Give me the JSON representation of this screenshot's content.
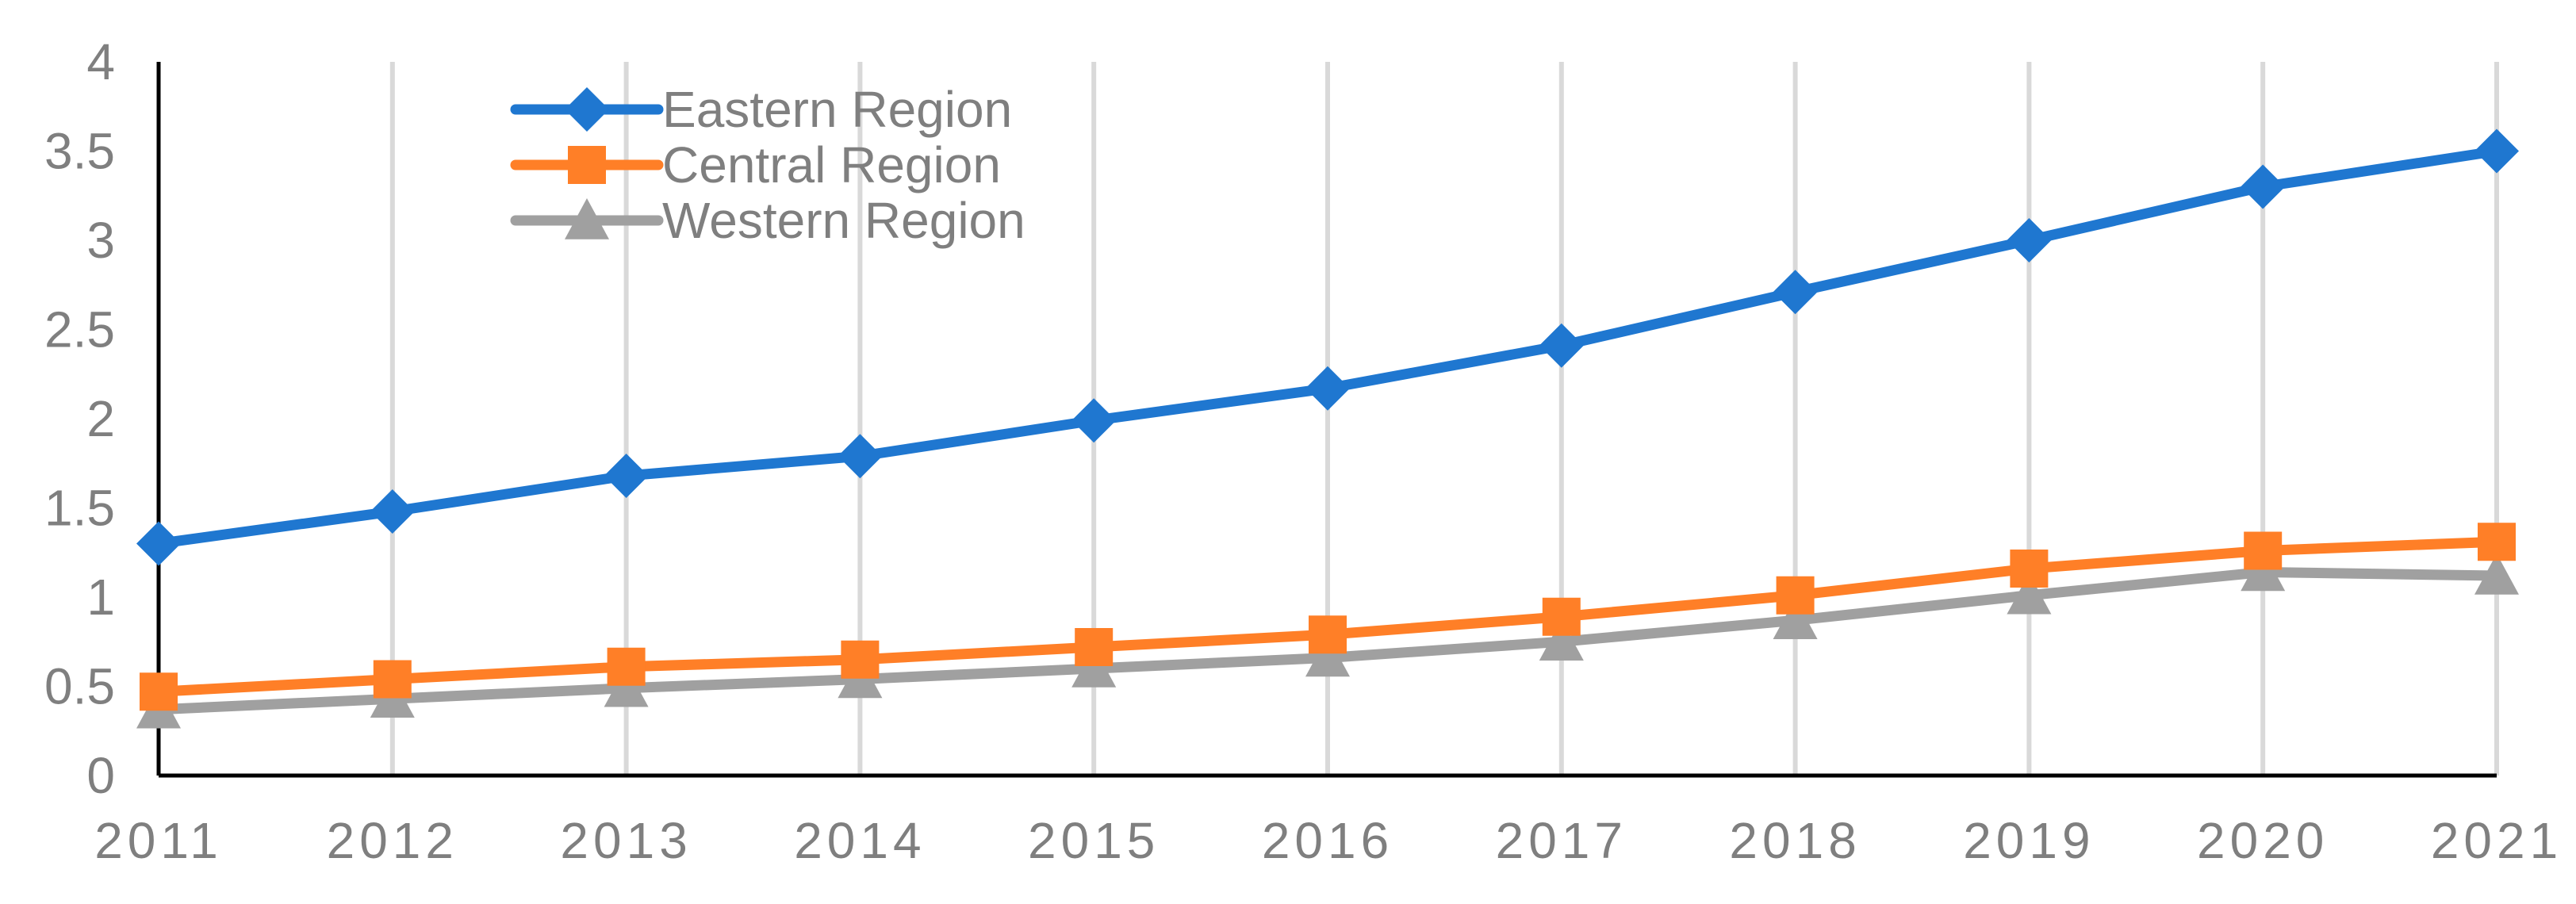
{
  "chart_data": {
    "type": "line",
    "title": "",
    "xlabel": "",
    "ylabel": "",
    "x": [
      "2011",
      "2012",
      "2013",
      "2014",
      "2015",
      "2016",
      "2017",
      "2018",
      "2019",
      "2020",
      "2021"
    ],
    "ylim": [
      0,
      4
    ],
    "y_ticks": [
      "0",
      "0.5",
      "1",
      "1.5",
      "2",
      "2.5",
      "3",
      "3.5",
      "4"
    ],
    "grid": "vertical gridlines at each year",
    "legend_position": "top-left",
    "series": [
      {
        "name": "Eastern Region",
        "color": "#1f77d0",
        "marker": "diamond",
        "values": [
          1.3,
          1.48,
          1.68,
          1.79,
          1.99,
          2.17,
          2.41,
          2.71,
          3.0,
          3.3,
          3.5
        ]
      },
      {
        "name": "Central Region",
        "color": "#ff7f27",
        "marker": "square",
        "values": [
          0.47,
          0.54,
          0.61,
          0.65,
          0.72,
          0.79,
          0.89,
          1.01,
          1.16,
          1.26,
          1.31
        ]
      },
      {
        "name": "Western Region",
        "color": "#a0a0a0",
        "marker": "triangle",
        "values": [
          0.37,
          0.43,
          0.49,
          0.54,
          0.6,
          0.66,
          0.75,
          0.87,
          1.01,
          1.14,
          1.12
        ]
      }
    ]
  }
}
